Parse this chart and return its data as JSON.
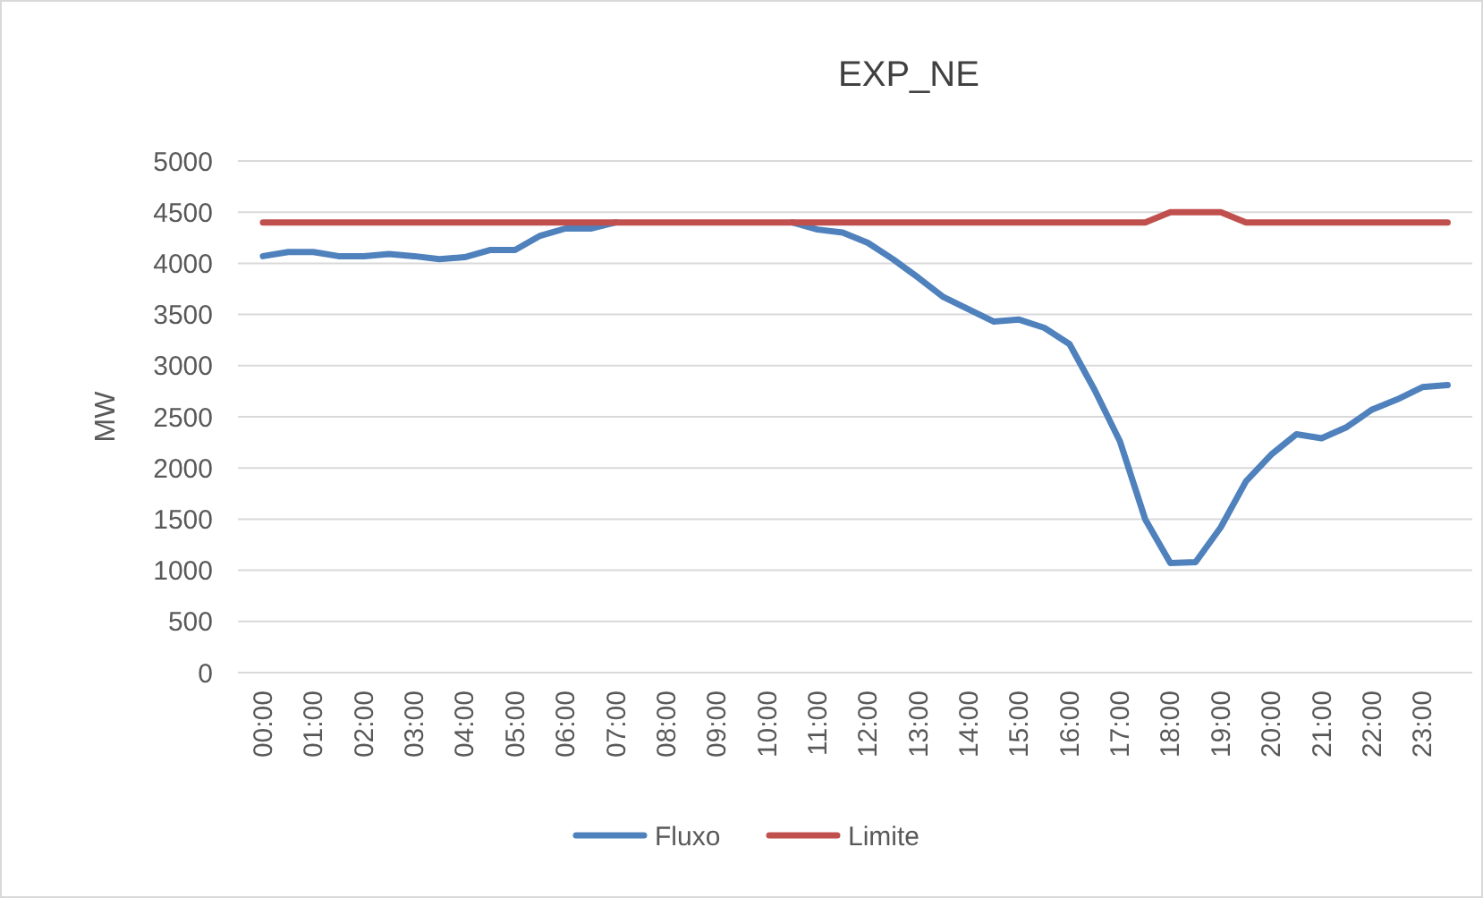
{
  "chart_data": {
    "type": "line",
    "title": "EXP_NE",
    "ylabel": "MW",
    "categories": [
      "00:00",
      null,
      "01:00",
      null,
      "02:00",
      null,
      "03:00",
      null,
      "04:00",
      null,
      "05:00",
      null,
      "06:00",
      null,
      "07:00",
      null,
      "08:00",
      null,
      "09:00",
      null,
      "10:00",
      null,
      "11:00",
      null,
      "12:00",
      null,
      "13:00",
      null,
      "14:00",
      null,
      "15:00",
      null,
      "16:00",
      null,
      "17:00",
      null,
      "18:00",
      null,
      "19:00",
      null,
      "20:00",
      null,
      "21:00",
      null,
      "22:00",
      null,
      "23:00",
      null
    ],
    "series": [
      {
        "name": "Fluxo",
        "color": "#4f81bd",
        "values": [
          4070,
          4110,
          4110,
          4070,
          4070,
          4090,
          4070,
          4040,
          4060,
          4130,
          4130,
          4270,
          4340,
          4340,
          4400,
          null,
          null,
          null,
          null,
          null,
          null,
          4400,
          4330,
          4300,
          4200,
          4040,
          3860,
          3670,
          3550,
          3430,
          3450,
          3370,
          3210,
          2760,
          2260,
          1500,
          1070,
          1080,
          1420,
          1870,
          2130,
          2330,
          2290,
          2400,
          2570,
          2670,
          2790,
          2810
        ]
      },
      {
        "name": "Limite",
        "color": "#c0504d",
        "values": [
          4400,
          4400,
          4400,
          4400,
          4400,
          4400,
          4400,
          4400,
          4400,
          4400,
          4400,
          4400,
          4400,
          4400,
          4400,
          4400,
          4400,
          4400,
          4400,
          4400,
          4400,
          4400,
          4400,
          4400,
          4400,
          4400,
          4400,
          4400,
          4400,
          4400,
          4400,
          4400,
          4400,
          4400,
          4400,
          4400,
          4500,
          4500,
          4500,
          4400,
          4400,
          4400,
          4400,
          4400,
          4400,
          4400,
          4400,
          4400
        ]
      }
    ],
    "ylim": [
      0,
      5000
    ],
    "yticks": [
      0,
      500,
      1000,
      1500,
      2000,
      2500,
      3000,
      3500,
      4000,
      4500,
      5000
    ],
    "grid": "y",
    "legend": "bottom",
    "marker": "none",
    "line_style": "solid"
  }
}
